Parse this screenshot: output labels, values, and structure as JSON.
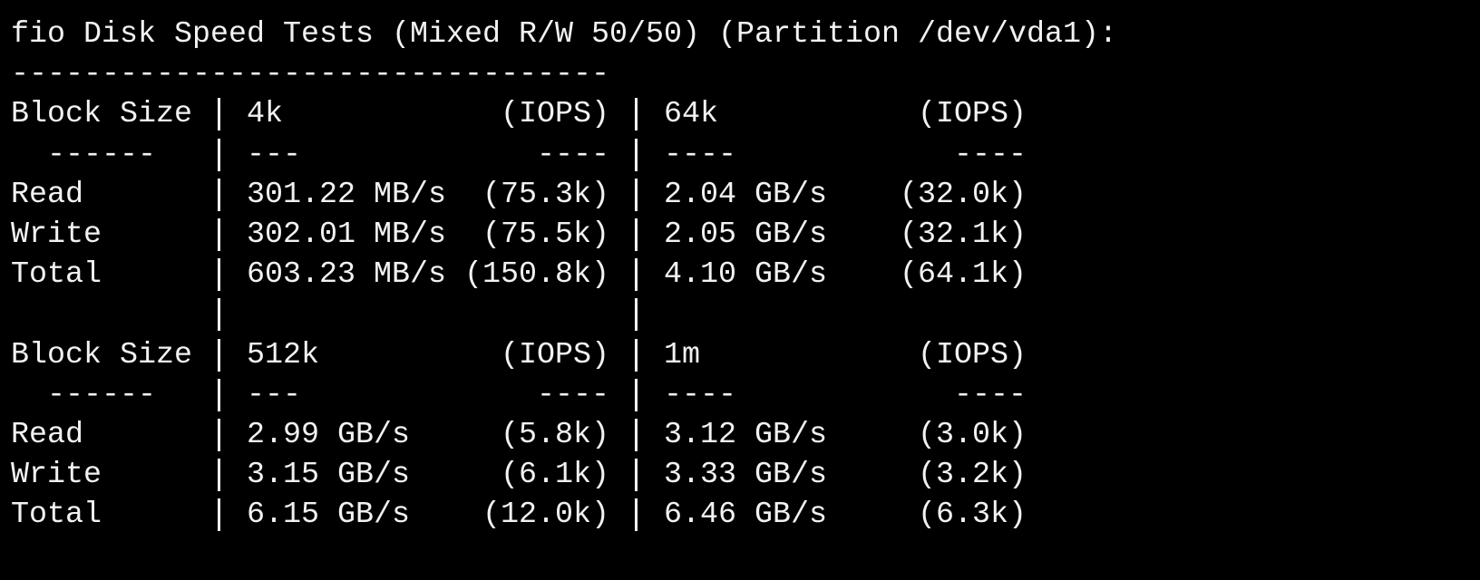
{
  "title": "fio Disk Speed Tests (Mixed R/W 50/50) (Partition /dev/vda1):",
  "separator": "---------------------------------",
  "tables": [
    {
      "header": {
        "label": "Block Size",
        "columns": [
          {
            "size": "4k",
            "unit": "(IOPS)"
          },
          {
            "size": "64k",
            "unit": "(IOPS)"
          }
        ]
      },
      "divider": {
        "label": "------",
        "columns": [
          {
            "left": "---",
            "right": "----"
          },
          {
            "left": "----",
            "right": "----"
          }
        ]
      },
      "rows": [
        {
          "label": "Read",
          "cells": [
            {
              "speed": "301.22 MB/s",
              "iops": "(75.3k)"
            },
            {
              "speed": "2.04 GB/s",
              "iops": "(32.0k)"
            }
          ]
        },
        {
          "label": "Write",
          "cells": [
            {
              "speed": "302.01 MB/s",
              "iops": "(75.5k)"
            },
            {
              "speed": "2.05 GB/s",
              "iops": "(32.1k)"
            }
          ]
        },
        {
          "label": "Total",
          "cells": [
            {
              "speed": "603.23 MB/s",
              "iops": "(150.8k)"
            },
            {
              "speed": "4.10 GB/s",
              "iops": "(64.1k)"
            }
          ]
        }
      ]
    },
    {
      "header": {
        "label": "Block Size",
        "columns": [
          {
            "size": "512k",
            "unit": "(IOPS)"
          },
          {
            "size": "1m",
            "unit": "(IOPS)"
          }
        ]
      },
      "divider": {
        "label": "------",
        "columns": [
          {
            "left": "---",
            "right": "----"
          },
          {
            "left": "----",
            "right": "----"
          }
        ]
      },
      "rows": [
        {
          "label": "Read",
          "cells": [
            {
              "speed": "2.99 GB/s",
              "iops": "(5.8k)"
            },
            {
              "speed": "3.12 GB/s",
              "iops": "(3.0k)"
            }
          ]
        },
        {
          "label": "Write",
          "cells": [
            {
              "speed": "3.15 GB/s",
              "iops": "(6.1k)"
            },
            {
              "speed": "3.33 GB/s",
              "iops": "(3.2k)"
            }
          ]
        },
        {
          "label": "Total",
          "cells": [
            {
              "speed": "6.15 GB/s",
              "iops": "(12.0k)"
            },
            {
              "speed": "6.46 GB/s",
              "iops": "(6.3k)"
            }
          ]
        }
      ]
    }
  ]
}
